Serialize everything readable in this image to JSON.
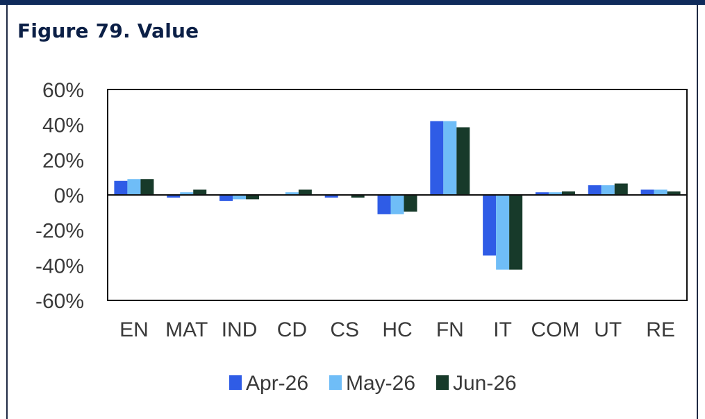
{
  "figure": {
    "title": "Figure 79. Value"
  },
  "chart_data": {
    "type": "bar",
    "categories": [
      "EN",
      "MAT",
      "IND",
      "CD",
      "CS",
      "HC",
      "FN",
      "IT",
      "COM",
      "UT",
      "RE"
    ],
    "series": [
      {
        "name": "Apr-26",
        "values": [
          8,
          -1.5,
          -3.5,
          0,
          -1.5,
          -11,
          42,
          -34.5,
          1.5,
          5.5,
          3
        ],
        "color": "#2f5ce6"
      },
      {
        "name": "May-26",
        "values": [
          9,
          1.5,
          -2.5,
          1.5,
          0,
          -11,
          42,
          -42.5,
          1.5,
          5.5,
          3
        ],
        "color": "#6fbdf7"
      },
      {
        "name": "Jun-26",
        "values": [
          9,
          3,
          -2.5,
          3,
          -1.5,
          -9.5,
          38.5,
          -42.5,
          2,
          6.5,
          2
        ],
        "color": "#173a2a"
      }
    ],
    "y_ticks": [
      "60%",
      "40%",
      "20%",
      "0%",
      "-20%",
      "-40%",
      "-60%"
    ],
    "ylim": [
      -60,
      60
    ],
    "legend_position": "bottom",
    "grid": false
  }
}
